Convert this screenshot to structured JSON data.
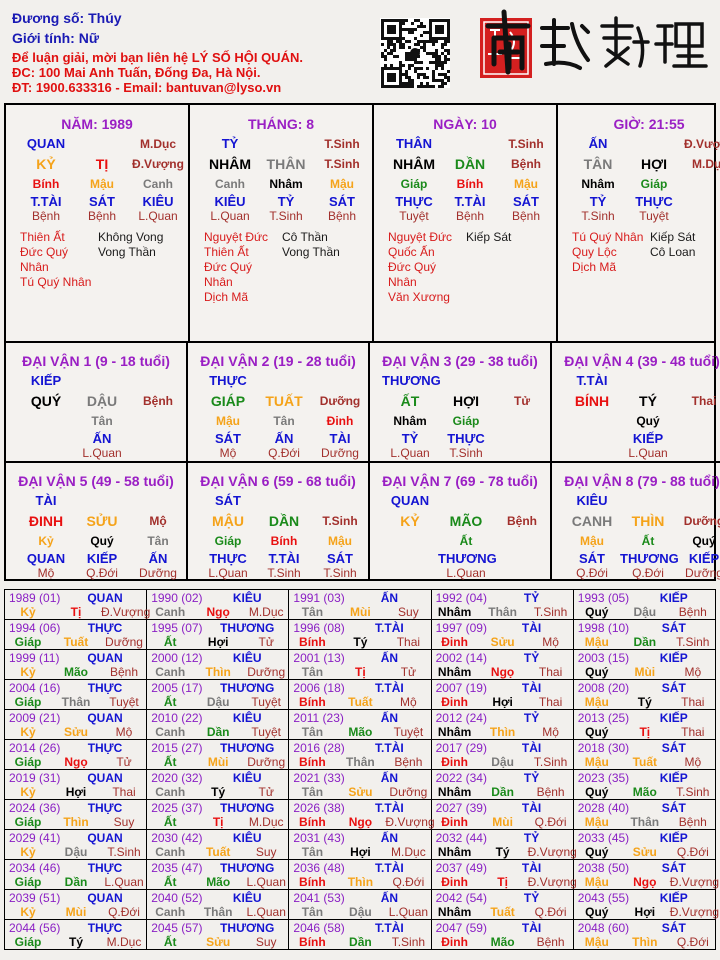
{
  "header": {
    "name_line": "Đương số: Thúy",
    "gender_line": "Giới tính:   Nữ",
    "contact_lines": [
      "Để luận giải, mời bạn liên hệ LÝ SỐ HỘI QUÁN.",
      "ĐC: 100 Mai Anh Tuấn, Đống Đa, Hà Nội.",
      "ĐT: 1900.633316 - Email: bantuvan@lyso.vn"
    ]
  },
  "logo": {
    "text": "南越數理",
    "has_qr_code": true,
    "seal_color": "#d42020"
  },
  "colors": {
    "wood": "#1a8a1a",
    "fire": "#e81010",
    "earth": "#f5a31a",
    "metal": "#7a7a7a",
    "water": "#000000",
    "title": "#9a1fc4",
    "god": "#1414d2",
    "stage": "#a2302c",
    "good_star": "#d81c1c"
  },
  "pillars": [
    {
      "title": "NĂM: 1989",
      "god": "QUAN",
      "stage_top": "M.Dục",
      "stem": "KỶ",
      "branch": "TỊ",
      "stage": "Đ.Vượng",
      "hidden": [
        {
          "stem": "Bính",
          "god": "T.TÀI",
          "stage": "Bệnh"
        },
        {
          "stem": "Mậu",
          "god": "SÁT",
          "stage": "Bệnh"
        },
        {
          "stem": "Canh",
          "god": "KIÊU",
          "stage": "L.Quan"
        }
      ],
      "good_stars": [
        "Thiên Ất",
        "Đức Quý Nhân",
        "Tú Quý Nhân"
      ],
      "bad_stars": [
        "Không Vong",
        "Vong Thần"
      ]
    },
    {
      "title": "THÁNG: 8",
      "god": "TỶ",
      "stage_top": "T.Sinh",
      "stem": "NHÂM",
      "branch": "THÂN",
      "stage": "T.Sinh",
      "hidden": [
        {
          "stem": "Canh",
          "god": "KIÊU",
          "stage": "L.Quan"
        },
        {
          "stem": "Nhâm",
          "god": "TỶ",
          "stage": "T.Sinh"
        },
        {
          "stem": "Mậu",
          "god": "SÁT",
          "stage": "Bệnh"
        }
      ],
      "good_stars": [
        "Nguyệt Đức",
        "Thiên Ất",
        "Đức Quý Nhân",
        "Dịch Mã"
      ],
      "bad_stars": [
        "Cô Thần",
        "Vong Thần"
      ]
    },
    {
      "title": "NGÀY: 10",
      "god": "THÂN",
      "stage_top": "T.Sinh",
      "stem": "NHÂM",
      "branch": "DẦN",
      "stage": "Bệnh",
      "hidden": [
        {
          "stem": "Giáp",
          "god": "THỰC",
          "stage": "Tuyệt"
        },
        {
          "stem": "Bính",
          "god": "T.TÀI",
          "stage": "Bệnh"
        },
        {
          "stem": "Mậu",
          "god": "SÁT",
          "stage": "Bệnh"
        }
      ],
      "good_stars": [
        "Nguyệt Đức",
        "Quốc Ấn",
        "Đức Quý Nhân",
        "Văn Xương"
      ],
      "bad_stars": [
        "Kiếp Sát"
      ]
    },
    {
      "title": "GIỜ: 21:55",
      "god": "ẤN",
      "stage_top": "Đ.Vượng",
      "stem": "TÂN",
      "branch": "HỢI",
      "stage": "M.Dục",
      "hidden": [
        {
          "stem": "Nhâm",
          "god": "TỶ",
          "stage": "T.Sinh"
        },
        {
          "stem": "Giáp",
          "god": "THỰC",
          "stage": "Tuyệt"
        },
        null
      ],
      "good_stars": [
        "Tú Quý Nhân",
        "Quy Lộc",
        "Dịch Mã"
      ],
      "bad_stars": [
        "Kiếp Sát",
        "Cô Loan"
      ]
    }
  ],
  "dai_van": [
    {
      "title": "ĐẠI VẬN 1 (9 - 18 tuổi)",
      "god": "KIẾP",
      "stem": "QUÝ",
      "branch": "DẬU",
      "stage": "Bệnh",
      "hidden": [
        null,
        {
          "stem": "Tân",
          "god": "ẤN",
          "stage": "L.Quan"
        },
        null
      ]
    },
    {
      "title": "ĐẠI VẬN 2 (19 - 28 tuổi)",
      "god": "THỰC",
      "stem": "GIÁP",
      "branch": "TUẤT",
      "stage": "Dưỡng",
      "hidden": [
        {
          "stem": "Mậu",
          "god": "SÁT",
          "stage": "Mộ"
        },
        {
          "stem": "Tân",
          "god": "ẤN",
          "stage": "Q.Đới"
        },
        {
          "stem": "Đinh",
          "god": "TÀI",
          "stage": "Dưỡng"
        }
      ]
    },
    {
      "title": "ĐẠI VẬN 3 (29 - 38 tuổi)",
      "god": "THƯƠNG",
      "stem": "ẤT",
      "branch": "HỢI",
      "stage": "Tử",
      "hidden": [
        {
          "stem": "Nhâm",
          "god": "TỶ",
          "stage": "L.Quan"
        },
        {
          "stem": "Giáp",
          "god": "THỰC",
          "stage": "T.Sinh"
        },
        null
      ]
    },
    {
      "title": "ĐẠI VẬN 4 (39 - 48 tuổi)",
      "god": "T.TÀI",
      "stem": "BÍNH",
      "branch": "TÝ",
      "stage": "Thai",
      "hidden": [
        null,
        {
          "stem": "Quý",
          "god": "KIẾP",
          "stage": "L.Quan"
        },
        null
      ]
    },
    {
      "title": "ĐẠI VẬN 5 (49 - 58 tuổi)",
      "god": "TÀI",
      "stem": "ĐINH",
      "branch": "SỬU",
      "stage": "Mộ",
      "hidden": [
        {
          "stem": "Kỷ",
          "god": "QUAN",
          "stage": "Mộ"
        },
        {
          "stem": "Quý",
          "god": "KIẾP",
          "stage": "Q.Đới"
        },
        {
          "stem": "Tân",
          "god": "ẤN",
          "stage": "Dưỡng"
        }
      ]
    },
    {
      "title": "ĐẠI VẬN 6 (59 - 68 tuổi)",
      "god": "SÁT",
      "stem": "MẬU",
      "branch": "DẦN",
      "stage": "T.Sinh",
      "hidden": [
        {
          "stem": "Giáp",
          "god": "THỰC",
          "stage": "L.Quan"
        },
        {
          "stem": "Bính",
          "god": "T.TÀI",
          "stage": "T.Sinh"
        },
        {
          "stem": "Mậu",
          "god": "SÁT",
          "stage": "T.Sinh"
        }
      ]
    },
    {
      "title": "ĐẠI VẬN 7 (69 - 78 tuổi)",
      "god": "QUAN",
      "stem": "KỶ",
      "branch": "MÃO",
      "stage": "Bệnh",
      "hidden": [
        null,
        {
          "stem": "Ất",
          "god": "THƯƠNG",
          "stage": "L.Quan"
        },
        null
      ]
    },
    {
      "title": "ĐẠI VẬN 8 (79 - 88 tuổi)",
      "god": "KIÊU",
      "stem": "CANH",
      "branch": "THÌN",
      "stage": "Dưỡng",
      "hidden": [
        {
          "stem": "Mậu",
          "god": "SÁT",
          "stage": "Q.Đới"
        },
        {
          "stem": "Ất",
          "god": "THƯƠNG",
          "stage": "Q.Đới"
        },
        {
          "stem": "Quý",
          "god": "KIẾP",
          "stage": "Dưỡng"
        }
      ]
    }
  ],
  "annual": [
    [
      "1989 (01)",
      "QUAN",
      "Kỷ",
      "Tị",
      "Đ.Vượng"
    ],
    [
      "1990 (02)",
      "KIÊU",
      "Canh",
      "Ngọ",
      "M.Dục"
    ],
    [
      "1991 (03)",
      "ẤN",
      "Tân",
      "Mùi",
      "Suy"
    ],
    [
      "1992 (04)",
      "TỶ",
      "Nhâm",
      "Thân",
      "T.Sinh"
    ],
    [
      "1993 (05)",
      "KIẾP",
      "Quý",
      "Dậu",
      "Bệnh"
    ],
    [
      "1994 (06)",
      "THỰC",
      "Giáp",
      "Tuất",
      "Dưỡng"
    ],
    [
      "1995 (07)",
      "THƯƠNG",
      "Ất",
      "Hợi",
      "Tử"
    ],
    [
      "1996 (08)",
      "T.TÀI",
      "Bính",
      "Tý",
      "Thai"
    ],
    [
      "1997 (09)",
      "TÀI",
      "Đinh",
      "Sửu",
      "Mộ"
    ],
    [
      "1998 (10)",
      "SÁT",
      "Mậu",
      "Dần",
      "T.Sinh"
    ],
    [
      "1999 (11)",
      "QUAN",
      "Kỷ",
      "Mão",
      "Bệnh"
    ],
    [
      "2000 (12)",
      "KIÊU",
      "Canh",
      "Thìn",
      "Dưỡng"
    ],
    [
      "2001 (13)",
      "ẤN",
      "Tân",
      "Tị",
      "Tử"
    ],
    [
      "2002 (14)",
      "TỶ",
      "Nhâm",
      "Ngọ",
      "Thai"
    ],
    [
      "2003 (15)",
      "KIẾP",
      "Quý",
      "Mùi",
      "Mộ"
    ],
    [
      "2004 (16)",
      "THỰC",
      "Giáp",
      "Thân",
      "Tuyệt"
    ],
    [
      "2005 (17)",
      "THƯƠNG",
      "Ất",
      "Dậu",
      "Tuyệt"
    ],
    [
      "2006 (18)",
      "T.TÀI",
      "Bính",
      "Tuất",
      "Mộ"
    ],
    [
      "2007 (19)",
      "TÀI",
      "Đinh",
      "Hợi",
      "Thai"
    ],
    [
      "2008 (20)",
      "SÁT",
      "Mậu",
      "Tý",
      "Thai"
    ],
    [
      "2009 (21)",
      "QUAN",
      "Kỷ",
      "Sửu",
      "Mộ"
    ],
    [
      "2010 (22)",
      "KIÊU",
      "Canh",
      "Dần",
      "Tuyệt"
    ],
    [
      "2011 (23)",
      "ẤN",
      "Tân",
      "Mão",
      "Tuyệt"
    ],
    [
      "2012 (24)",
      "TỶ",
      "Nhâm",
      "Thìn",
      "Mộ"
    ],
    [
      "2013 (25)",
      "KIẾP",
      "Quý",
      "Tị",
      "Thai"
    ],
    [
      "2014 (26)",
      "THỰC",
      "Giáp",
      "Ngọ",
      "Tử"
    ],
    [
      "2015 (27)",
      "THƯƠNG",
      "Ất",
      "Mùi",
      "Dưỡng"
    ],
    [
      "2016 (28)",
      "T.TÀI",
      "Bính",
      "Thân",
      "Bệnh"
    ],
    [
      "2017 (29)",
      "TÀI",
      "Đinh",
      "Dậu",
      "T.Sinh"
    ],
    [
      "2018 (30)",
      "SÁT",
      "Mậu",
      "Tuất",
      "Mộ"
    ],
    [
      "2019 (31)",
      "QUAN",
      "Kỷ",
      "Hợi",
      "Thai"
    ],
    [
      "2020 (32)",
      "KIÊU",
      "Canh",
      "Tý",
      "Tử"
    ],
    [
      "2021 (33)",
      "ẤN",
      "Tân",
      "Sửu",
      "Dưỡng"
    ],
    [
      "2022 (34)",
      "TỶ",
      "Nhâm",
      "Dần",
      "Bệnh"
    ],
    [
      "2023 (35)",
      "KIẾP",
      "Quý",
      "Mão",
      "T.Sinh"
    ],
    [
      "2024 (36)",
      "THỰC",
      "Giáp",
      "Thìn",
      "Suy"
    ],
    [
      "2025 (37)",
      "THƯƠNG",
      "Ất",
      "Tị",
      "M.Dục"
    ],
    [
      "2026 (38)",
      "T.TÀI",
      "Bính",
      "Ngọ",
      "Đ.Vượng"
    ],
    [
      "2027 (39)",
      "TÀI",
      "Đinh",
      "Mùi",
      "Q.Đới"
    ],
    [
      "2028 (40)",
      "SÁT",
      "Mậu",
      "Thân",
      "Bệnh"
    ],
    [
      "2029 (41)",
      "QUAN",
      "Kỷ",
      "Dậu",
      "T.Sinh"
    ],
    [
      "2030 (42)",
      "KIÊU",
      "Canh",
      "Tuất",
      "Suy"
    ],
    [
      "2031 (43)",
      "ẤN",
      "Tân",
      "Hợi",
      "M.Dục"
    ],
    [
      "2032 (44)",
      "TỶ",
      "Nhâm",
      "Tý",
      "Đ.Vượng"
    ],
    [
      "2033 (45)",
      "KIẾP",
      "Quý",
      "Sửu",
      "Q.Đới"
    ],
    [
      "2034 (46)",
      "THỰC",
      "Giáp",
      "Dần",
      "L.Quan"
    ],
    [
      "2035 (47)",
      "THƯƠNG",
      "Ất",
      "Mão",
      "L.Quan"
    ],
    [
      "2036 (48)",
      "T.TÀI",
      "Bính",
      "Thìn",
      "Q.Đới"
    ],
    [
      "2037 (49)",
      "TÀI",
      "Đinh",
      "Tị",
      "Đ.Vượng"
    ],
    [
      "2038 (50)",
      "SÁT",
      "Mậu",
      "Ngọ",
      "Đ.Vượng"
    ],
    [
      "2039 (51)",
      "QUAN",
      "Kỷ",
      "Mùi",
      "Q.Đới"
    ],
    [
      "2040 (52)",
      "KIÊU",
      "Canh",
      "Thân",
      "L.Quan"
    ],
    [
      "2041 (53)",
      "ẤN",
      "Tân",
      "Dậu",
      "L.Quan"
    ],
    [
      "2042 (54)",
      "TỶ",
      "Nhâm",
      "Tuất",
      "Q.Đới"
    ],
    [
      "2043 (55)",
      "KIẾP",
      "Quý",
      "Hợi",
      "Đ.Vượng"
    ],
    [
      "2044 (56)",
      "THỰC",
      "Giáp",
      "Tý",
      "M.Dục"
    ],
    [
      "2045 (57)",
      "THƯƠNG",
      "Ất",
      "Sửu",
      "Suy"
    ],
    [
      "2046 (58)",
      "T.TÀI",
      "Bính",
      "Dần",
      "T.Sinh"
    ],
    [
      "2047 (59)",
      "TÀI",
      "Đinh",
      "Mão",
      "Bệnh"
    ],
    [
      "2048 (60)",
      "SÁT",
      "Mậu",
      "Thìn",
      "Q.Đới"
    ]
  ]
}
